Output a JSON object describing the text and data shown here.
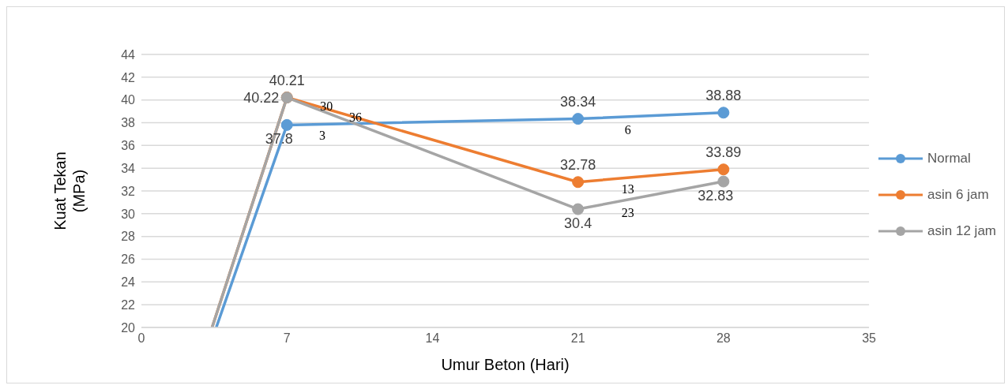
{
  "chart_data": {
    "type": "line",
    "xlabel": "Umur Beton (Hari)",
    "ylabel": "Kuat Tekan (MPa)",
    "series": [
      {
        "name": "Normal",
        "color": "#5b9bd5",
        "x": [
          3.6,
          7,
          21,
          28
        ],
        "values": [
          20,
          37.8,
          38.34,
          38.88
        ],
        "value_labels": [
          null,
          "37.8",
          "38.34",
          "38.88"
        ]
      },
      {
        "name": "asin 6 jam",
        "color": "#ed7d31",
        "x": [
          3.4,
          7,
          21,
          28
        ],
        "values": [
          20,
          40.22,
          32.78,
          33.89
        ],
        "value_labels": [
          null,
          "40.22",
          "32.78",
          "33.89"
        ]
      },
      {
        "name": "asin 12 jam",
        "color": "#a5a5a5",
        "x": [
          3.4,
          7,
          21,
          28
        ],
        "values": [
          20,
          40.21,
          30.4,
          32.83
        ],
        "value_labels": [
          null,
          "40.21",
          "30.4",
          "32.83"
        ]
      }
    ],
    "xlim": [
      0,
      35
    ],
    "xticks": [
      0,
      7,
      14,
      21,
      28,
      35
    ],
    "ylim": [
      20,
      44
    ],
    "yticks": [
      20,
      22,
      24,
      26,
      28,
      30,
      32,
      34,
      36,
      38,
      40,
      42,
      44
    ],
    "grid": "y",
    "legend": "right",
    "marker": "circle",
    "line_style": "solid",
    "annotations": [
      "30",
      "36",
      "3",
      "6",
      "13",
      "23"
    ]
  }
}
